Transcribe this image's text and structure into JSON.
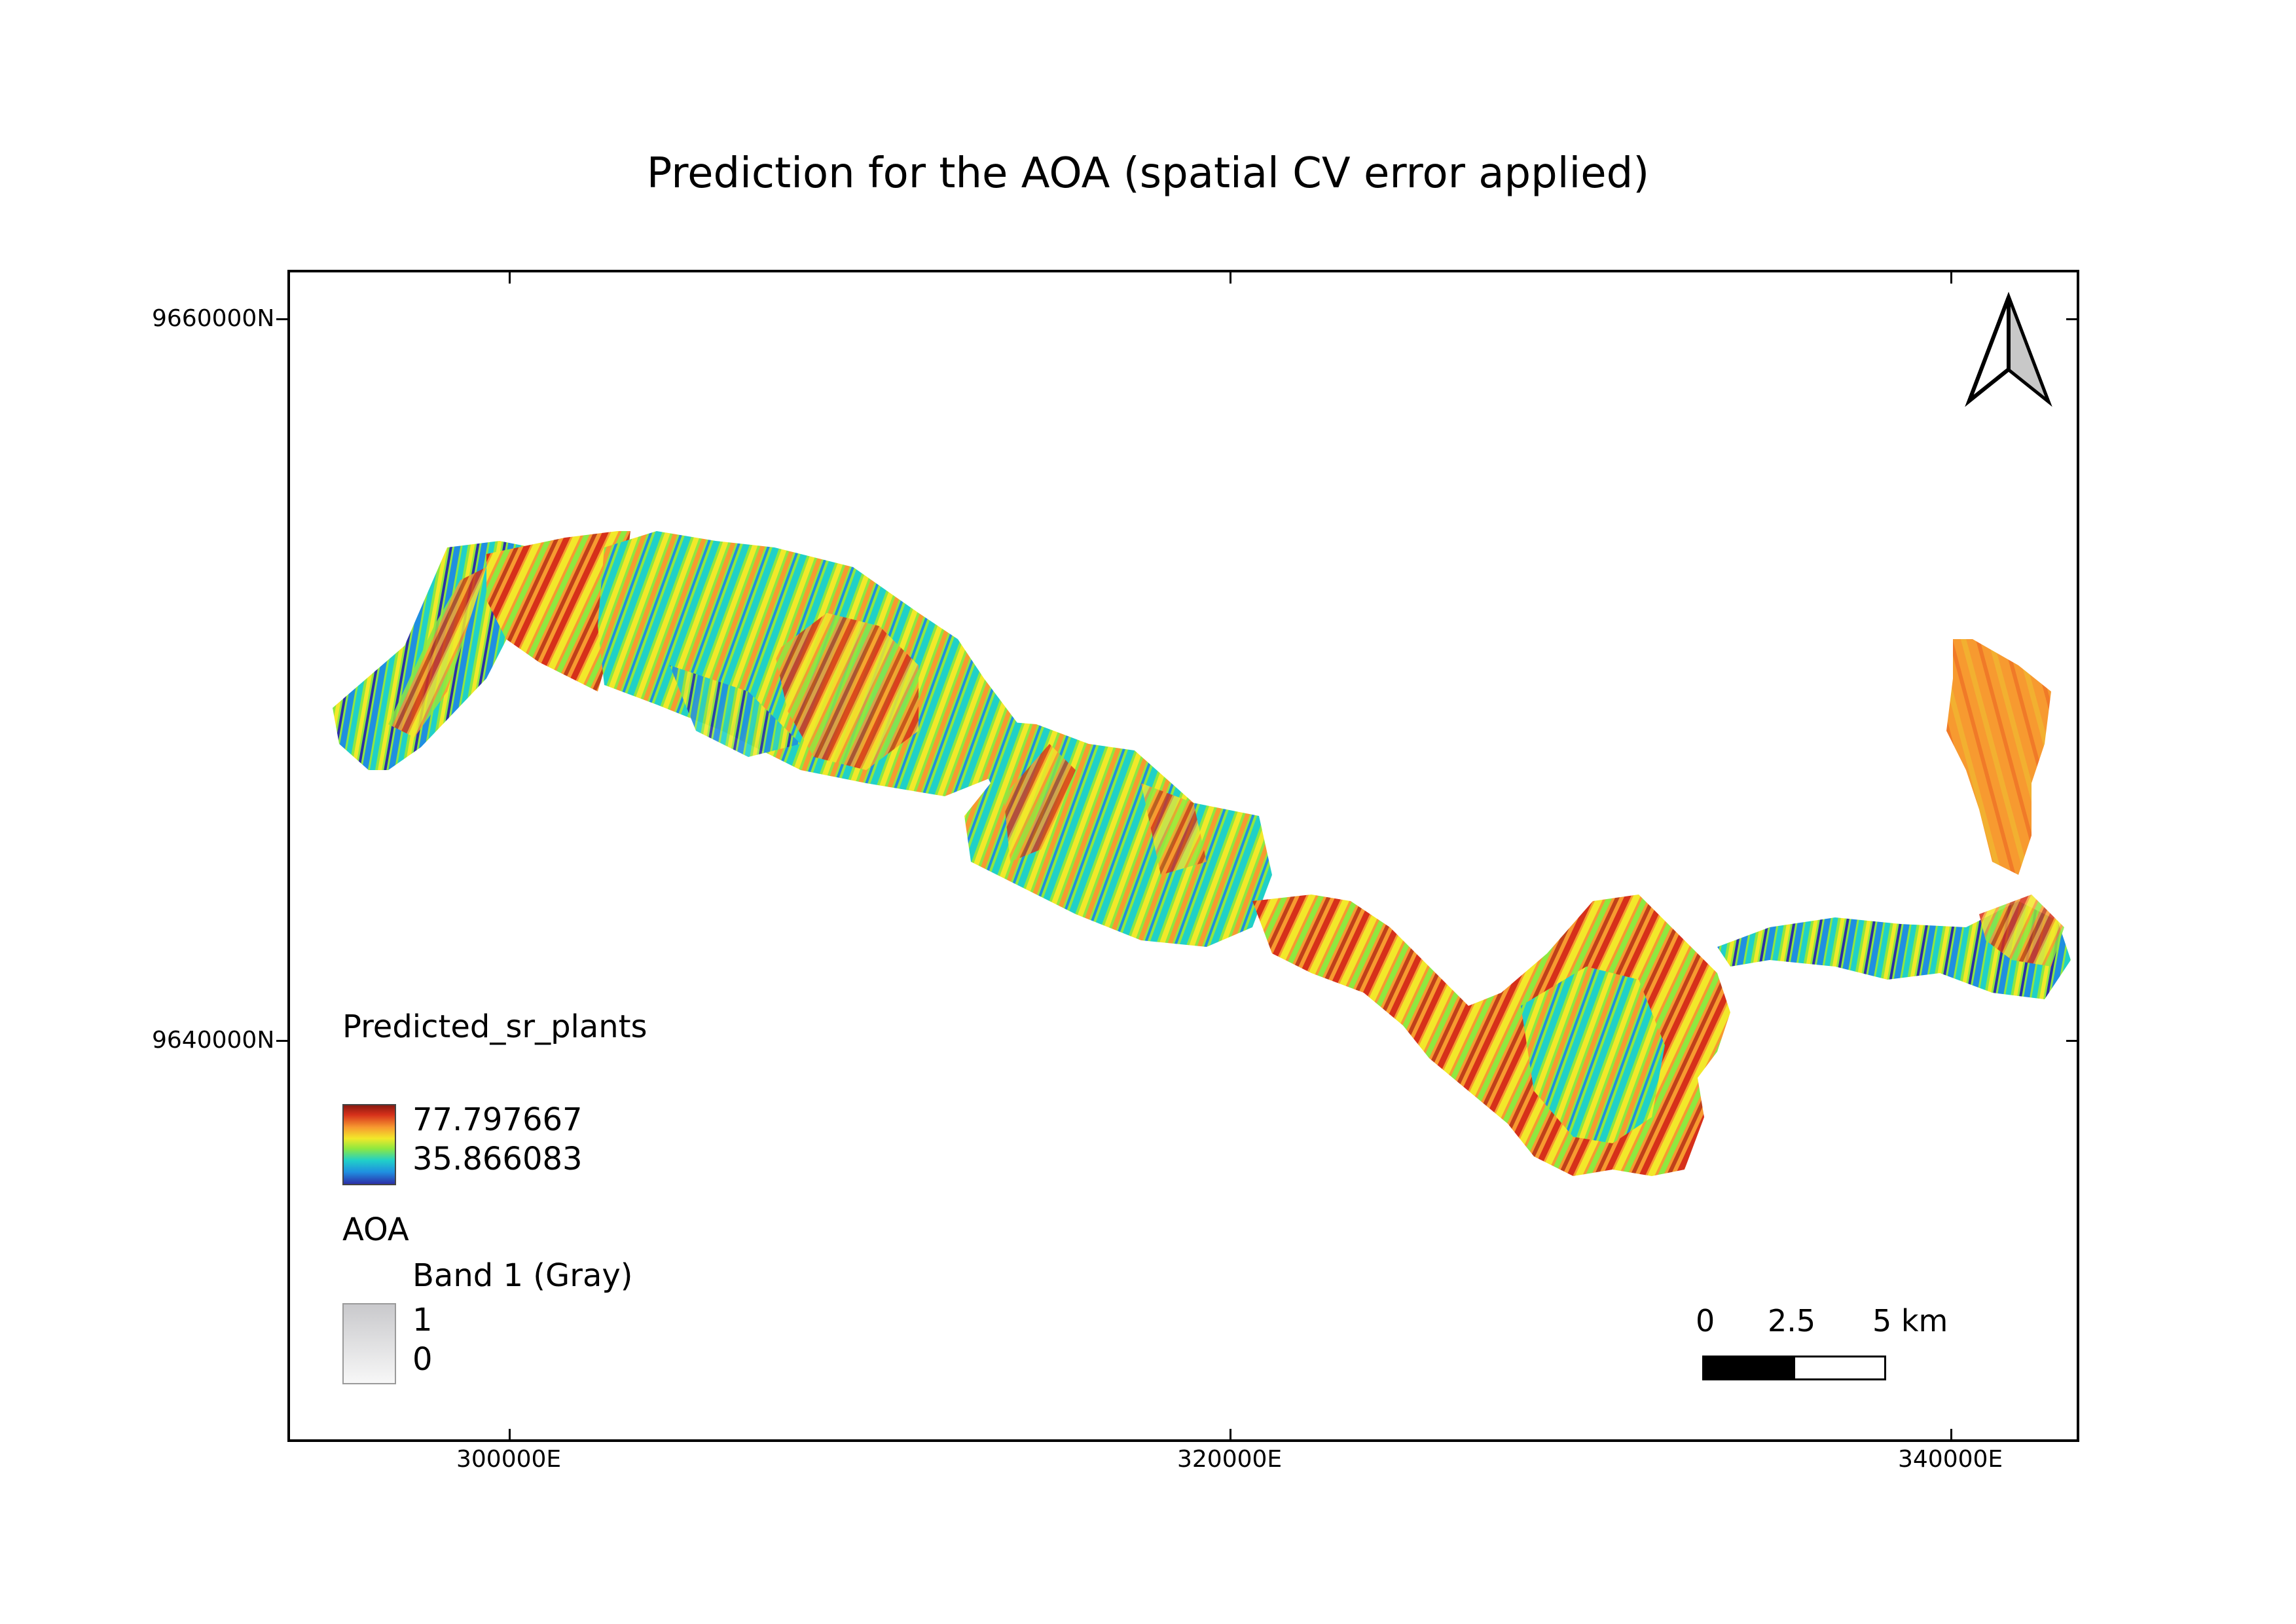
{
  "title": "Prediction for the AOA (spatial CV error applied)",
  "grid": {
    "y_labels": [
      "9660000N",
      "9640000N"
    ],
    "x_labels": [
      "300000E",
      "320000E",
      "340000E"
    ]
  },
  "legend": {
    "layer1_title": "Predicted_sr_plants",
    "layer1_max": "77.797667",
    "layer1_min": "35.866083",
    "layer2_title": "AOA",
    "layer2_band": "Band 1 (Gray)",
    "layer2_max": "1",
    "layer2_min": "0"
  },
  "scalebar": {
    "labels": [
      "0",
      "2.5",
      "5 km"
    ]
  },
  "colors": {
    "ramp": [
      "#2b2fa8",
      "#1f8fe0",
      "#20d0c8",
      "#8ee840",
      "#f2e82a",
      "#f79a30",
      "#d6301a",
      "#8b1a10"
    ],
    "aoa_ramp": [
      "#c9c9cc",
      "#f7f7f7"
    ]
  },
  "icons": {
    "north_arrow": "north-arrow-icon"
  }
}
